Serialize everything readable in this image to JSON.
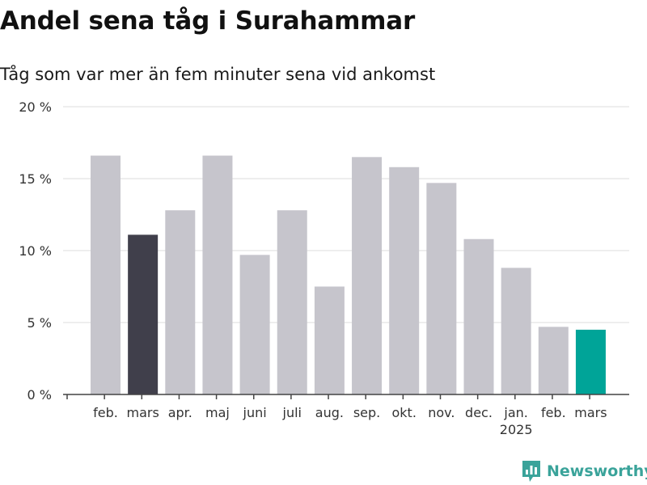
{
  "header": {
    "title": "Andel sena tåg i Surahammar",
    "subtitle": "Tåg som var mer än fem minuter sena vid ankomst"
  },
  "brand": {
    "name": "Newsworthy",
    "color": "#3aa39a"
  },
  "chart_data": {
    "type": "bar",
    "categories": [
      "feb.",
      "mars",
      "apr.",
      "maj",
      "juni",
      "juli",
      "aug.",
      "sep.",
      "okt.",
      "nov.",
      "dec.",
      "jan.",
      "feb.",
      "mars"
    ],
    "category_sublabels": [
      "",
      "",
      "",
      "",
      "",
      "",
      "",
      "",
      "",
      "",
      "",
      "2025",
      "",
      ""
    ],
    "values": [
      16.6,
      11.1,
      12.8,
      16.6,
      9.7,
      12.8,
      7.5,
      16.5,
      15.8,
      14.7,
      10.8,
      8.8,
      4.7,
      4.5
    ],
    "bar_colors": [
      "#c6c5cc",
      "#403f4b",
      "#c6c5cc",
      "#c6c5cc",
      "#c6c5cc",
      "#c6c5cc",
      "#c6c5cc",
      "#c6c5cc",
      "#c6c5cc",
      "#c6c5cc",
      "#c6c5cc",
      "#c6c5cc",
      "#c6c5cc",
      "#00a498"
    ],
    "ylim": [
      0,
      20
    ],
    "yticks": [
      0,
      5,
      10,
      15,
      20
    ],
    "ytick_labels": [
      "0 %",
      "5 %",
      "10 %",
      "15 %",
      "20 %"
    ],
    "grid": true,
    "xlabel": "",
    "ylabel": ""
  }
}
